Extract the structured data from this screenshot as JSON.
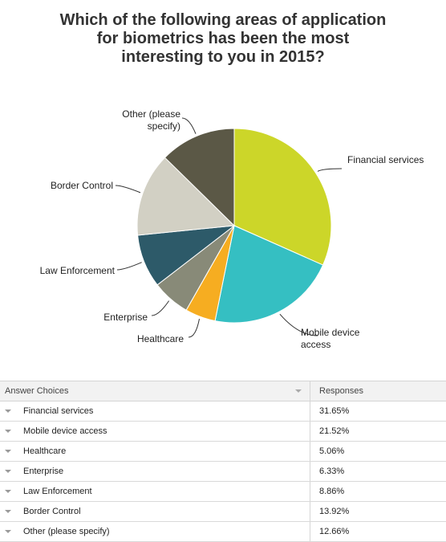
{
  "title_lines": [
    "Which of the following areas of application",
    "for biometrics has been the most",
    "interesting to you in 2015?"
  ],
  "chart_data": {
    "type": "pie",
    "title": "Which of the following areas of application for biometrics has been the most interesting to you in 2015?",
    "slices": [
      {
        "label": "Financial services",
        "value": 31.65,
        "color": "#ccd629"
      },
      {
        "label": "Mobile device access",
        "value": 21.52,
        "color": "#35bfc2"
      },
      {
        "label": "Healthcare",
        "value": 5.06,
        "color": "#f6ad21"
      },
      {
        "label": "Enterprise",
        "value": 6.33,
        "color": "#888a78"
      },
      {
        "label": "Law Enforcement",
        "value": 8.86,
        "color": "#2d5a69"
      },
      {
        "label": "Border Control",
        "value": 13.92,
        "color": "#d2d0c4"
      },
      {
        "label": "Other (please specify)",
        "value": 12.66,
        "color": "#5b5846"
      }
    ],
    "display_labels": [
      [
        "Financial services"
      ],
      [
        "Mobile device",
        "access"
      ],
      [
        "Healthcare"
      ],
      [
        "Enterprise"
      ],
      [
        "Law Enforcement"
      ],
      [
        "Border Control"
      ],
      [
        "Other (please",
        "specify)"
      ]
    ]
  },
  "table": {
    "header_choice": "Answer Choices",
    "header_responses": "Responses",
    "rows": [
      {
        "choice": "Financial services",
        "response": "31.65%"
      },
      {
        "choice": "Mobile device access",
        "response": "21.52%"
      },
      {
        "choice": "Healthcare",
        "response": "5.06%"
      },
      {
        "choice": "Enterprise",
        "response": "6.33%"
      },
      {
        "choice": "Law Enforcement",
        "response": "8.86%"
      },
      {
        "choice": "Border Control",
        "response": "13.92%"
      },
      {
        "choice": "Other (please specify)",
        "response": "12.66%"
      }
    ]
  }
}
